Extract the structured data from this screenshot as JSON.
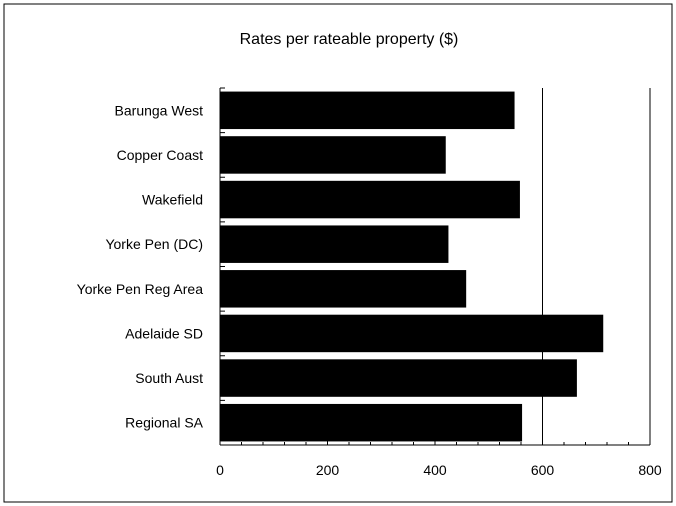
{
  "chart_data": {
    "type": "bar",
    "orientation": "horizontal",
    "title": "Rates per rateable property ($)",
    "xlabel": "",
    "ylabel": "",
    "categories": [
      "Barunga West",
      "Copper Coast",
      "Wakefield",
      "Yorke Pen (DC)",
      "Yorke Pen Reg Area",
      "Adelaide SD",
      "South Aust",
      "Regional SA"
    ],
    "values": [
      548,
      420,
      558,
      425,
      458,
      713,
      664,
      562
    ],
    "xlim": [
      0,
      800
    ],
    "xticks": [
      "0",
      "200",
      "400",
      "600",
      "800"
    ],
    "gridlines": [
      600,
      800
    ],
    "legend": "none",
    "bar_color": "#000000"
  }
}
